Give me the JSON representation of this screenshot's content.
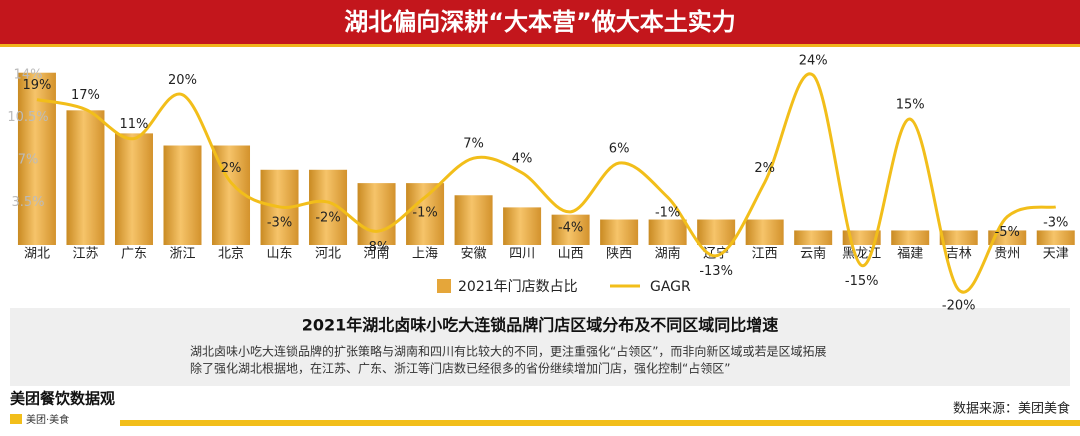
{
  "header": {
    "title": "湖北偏向深耕“大本营”做大本土实力"
  },
  "chart_data": {
    "type": "bar-line",
    "categories": [
      "湖北",
      "江苏",
      "广东",
      "浙江",
      "北京",
      "山东",
      "河北",
      "河南",
      "上海",
      "安徽",
      "四川",
      "山西",
      "陕西",
      "湖南",
      "辽宁",
      "江西",
      "云南",
      "黑龙江",
      "福建",
      "吉林",
      "贵州",
      "天津"
    ],
    "series": [
      {
        "name": "2021年门店数占比",
        "color": "#e5a63a",
        "values": [
          14.2,
          11.1,
          9.2,
          8.2,
          8.2,
          6.2,
          6.2,
          5.1,
          5.1,
          4.1,
          3.1,
          2.5,
          2.1,
          2.1,
          2.1,
          2.1,
          1.2,
          1.2,
          1.2,
          1.2,
          1.2,
          1.2
        ]
      },
      {
        "name": "GAGR",
        "color": "#f2be1a",
        "axis": "y2",
        "values": [
          19,
          17,
          11,
          20,
          2,
          -3,
          -2,
          -8,
          -1,
          7,
          4,
          -4,
          6,
          -1,
          -13,
          2,
          24,
          -15,
          15,
          -20,
          -5,
          -3
        ],
        "value_labels": [
          "19%",
          "17%",
          "11%",
          "20%",
          "2%",
          "-3%",
          "-2%",
          "-8%",
          "-1%",
          "7%",
          "4%",
          "-4%",
          "6%",
          "-1%",
          "-13%",
          "2%",
          "24%",
          "-15%",
          "15%",
          "-20%",
          "-5%",
          "-3%"
        ]
      }
    ],
    "ylim": [
      0,
      15
    ],
    "yticks": [
      {
        "value": 3.5,
        "label": "3.5%"
      },
      {
        "value": 7,
        "label": "7%"
      },
      {
        "value": 10.5,
        "label": "10.5%"
      },
      {
        "value": 14,
        "label": "14%"
      }
    ],
    "y2lim": [
      -10.8,
      26.5
    ],
    "legend": "bottom"
  },
  "note": {
    "title": "2021年湖北卤味小吃大连锁品牌门店区域分布及不同区域同比增速",
    "lines": [
      "湖北卤味小吃大连锁品牌的扩张策略与湖南和四川有比较大的不同，更注重强化“占领区”，而非向新区域或若是区域拓展",
      "除了强化湖北根据地，在江苏、广东、浙江等门店数已经很多的省份继续增加门店，强化控制“占领区”"
    ]
  },
  "footer": {
    "logo": "美团餐饮数据观",
    "sublogo": "美团·美食",
    "source": "数据来源：美团美食"
  }
}
